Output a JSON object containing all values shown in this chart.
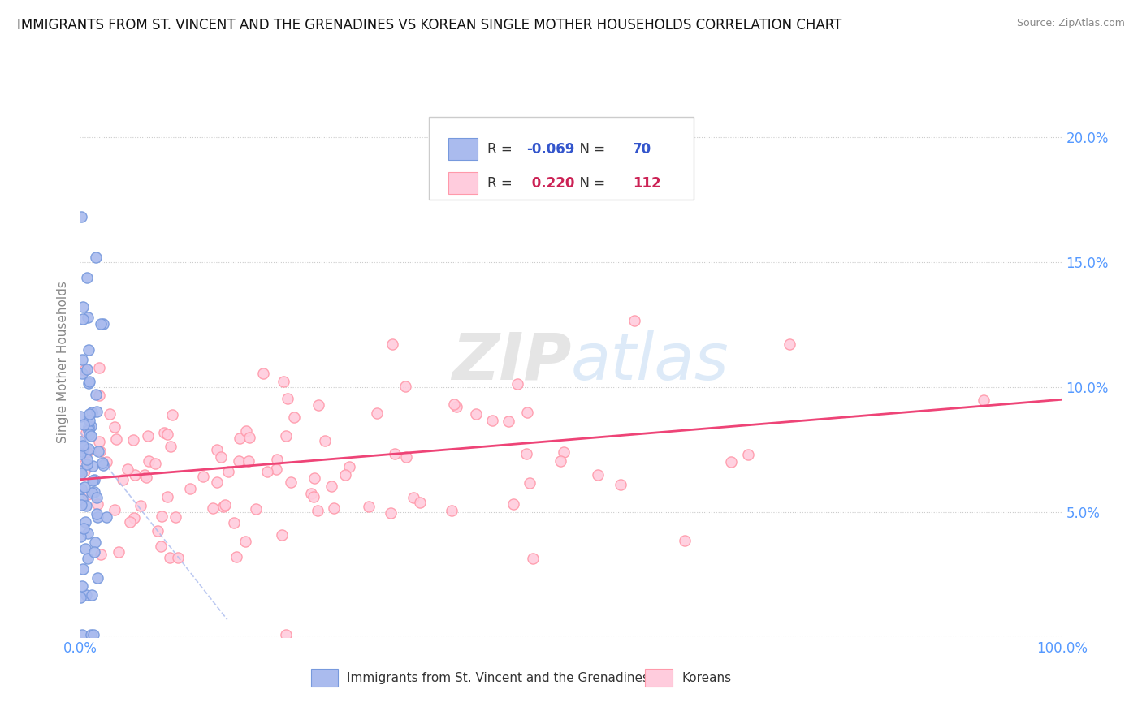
{
  "title": "IMMIGRANTS FROM ST. VINCENT AND THE GRENADINES VS KOREAN SINGLE MOTHER HOUSEHOLDS CORRELATION CHART",
  "source": "Source: ZipAtlas.com",
  "ylabel": "Single Mother Households",
  "xmin": 0.0,
  "xmax": 100.0,
  "ymin": 0.0,
  "ymax": 0.22,
  "yticks": [
    0.0,
    0.05,
    0.1,
    0.15,
    0.2
  ],
  "ytick_labels_right": [
    "",
    "5.0%",
    "10.0%",
    "15.0%",
    "20.0%"
  ],
  "series1_label": "Immigrants from St. Vincent and the Grenadines",
  "series1_color": "#aabbee",
  "series1_edge": "#7799dd",
  "series1_R": -0.069,
  "series1_N": 70,
  "series2_label": "Koreans",
  "series2_color": "#ffccdd",
  "series2_edge": "#ff99aa",
  "series2_R": 0.22,
  "series2_N": 112,
  "trend1_color": "#aabbee",
  "trend2_color": "#ee4477",
  "watermark_color": "#dddddd",
  "background_color": "#ffffff",
  "title_fontsize": 12,
  "legend_R1_color": "#3355cc",
  "legend_R2_color": "#cc2255",
  "legend_N_color": "#3355cc",
  "tick_color": "#5599ff",
  "seed": 42
}
